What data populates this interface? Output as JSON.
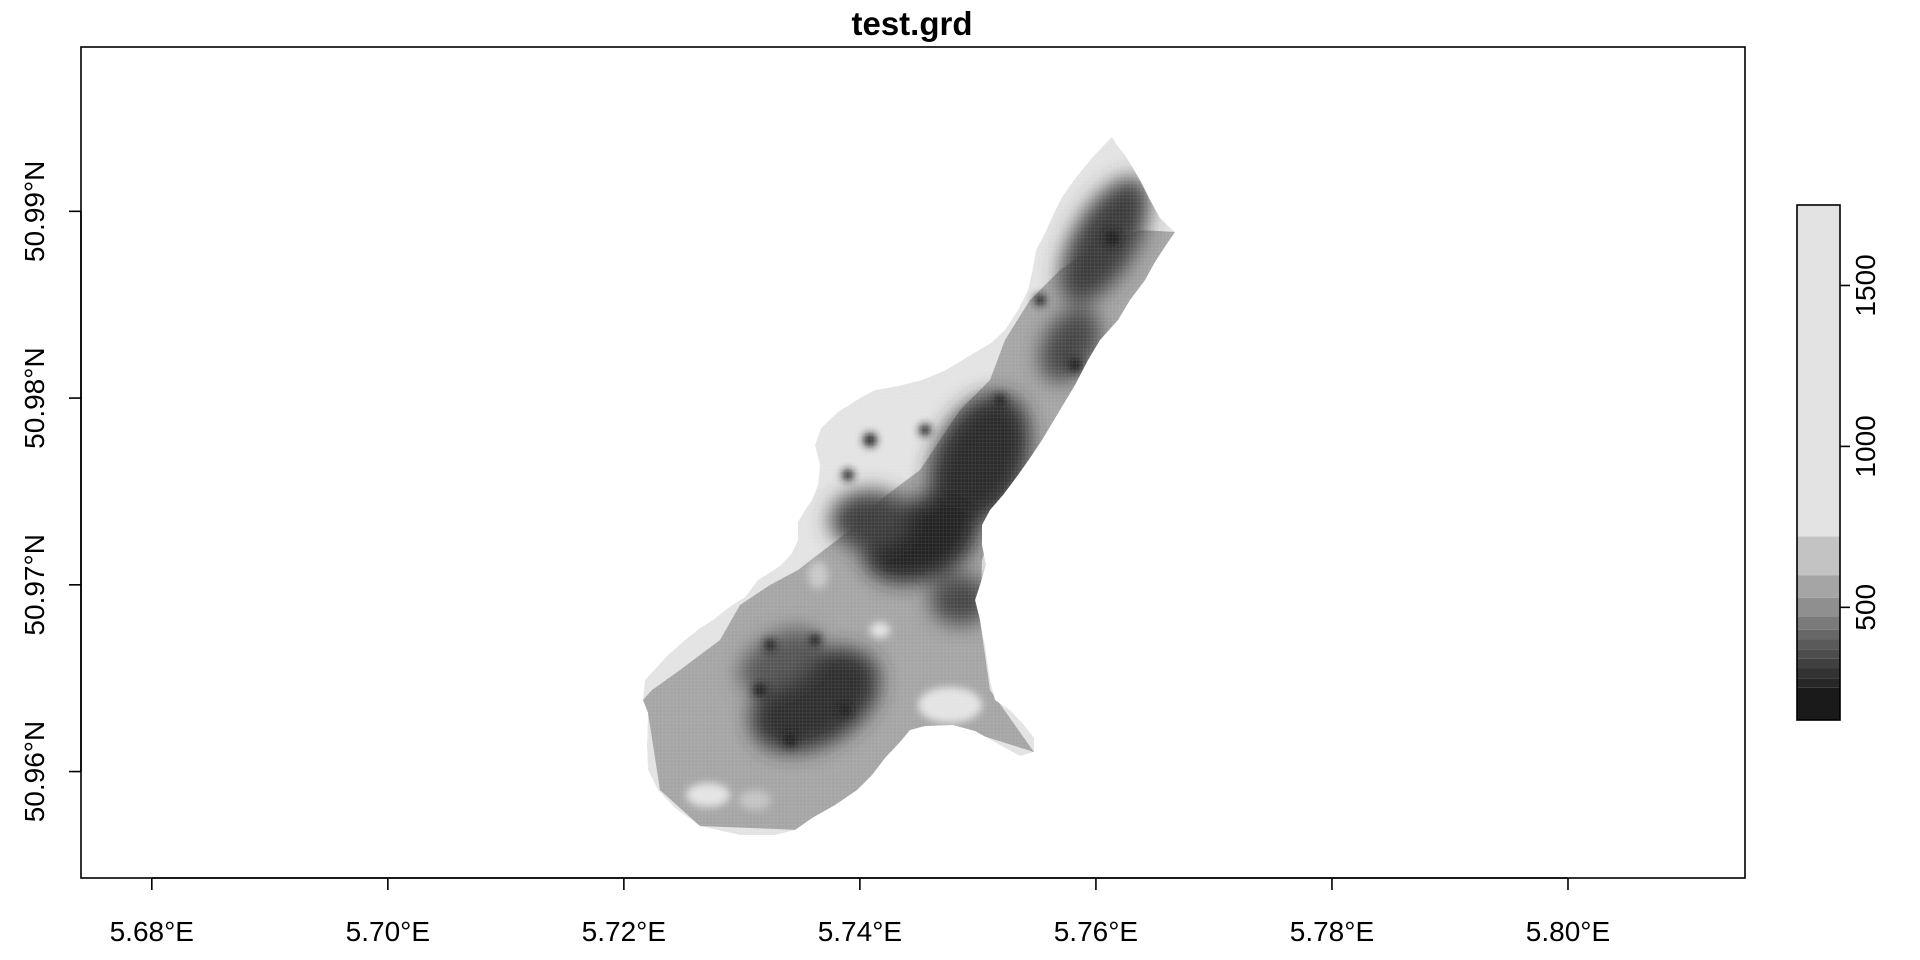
{
  "map": {
    "title": "test.grd",
    "x_axis": {
      "ticks": [
        5.68,
        5.7,
        5.72,
        5.74,
        5.76,
        5.78,
        5.8
      ],
      "tick_labels": [
        "5.68°E",
        "5.70°E",
        "5.72°E",
        "5.74°E",
        "5.76°E",
        "5.78°E",
        "5.80°E"
      ],
      "range": [
        5.674,
        5.815
      ]
    },
    "y_axis": {
      "ticks": [
        50.96,
        50.97,
        50.98,
        50.99
      ],
      "tick_labels": [
        "50.96°N",
        "50.97°N",
        "50.98°N",
        "50.99°N"
      ],
      "range": [
        50.9543,
        50.9988
      ]
    },
    "raster": {
      "color_scale": "grayscale",
      "shape": "elongated strip running from south-west to north-east",
      "extent": {
        "lon": [
          5.721,
          5.767
        ],
        "lat": [
          50.9565,
          50.9935
        ]
      },
      "low_value_core_color": "#1e1e1e",
      "high_value_edge_color": "#e3e3e3"
    },
    "legend": {
      "placement": "right",
      "ticks": [
        500,
        1000,
        1500
      ],
      "tick_labels": [
        "500",
        "1000",
        "1500"
      ],
      "value_range": [
        150,
        1750
      ],
      "bins": [
        {
          "from": 150,
          "to": 250,
          "color": "#1a1a1a"
        },
        {
          "from": 250,
          "to": 280,
          "color": "#272727"
        },
        {
          "from": 280,
          "to": 310,
          "color": "#333333"
        },
        {
          "from": 310,
          "to": 340,
          "color": "#404040"
        },
        {
          "from": 340,
          "to": 370,
          "color": "#4d4d4d"
        },
        {
          "from": 370,
          "to": 400,
          "color": "#5a5a5a"
        },
        {
          "from": 400,
          "to": 430,
          "color": "#676767"
        },
        {
          "from": 430,
          "to": 470,
          "color": "#7a7a7a"
        },
        {
          "from": 470,
          "to": 530,
          "color": "#8f8f8f"
        },
        {
          "from": 530,
          "to": 600,
          "color": "#a5a5a5"
        },
        {
          "from": 600,
          "to": 720,
          "color": "#c3c3c3"
        },
        {
          "from": 720,
          "to": 1750,
          "color": "#e3e3e3"
        }
      ]
    }
  }
}
